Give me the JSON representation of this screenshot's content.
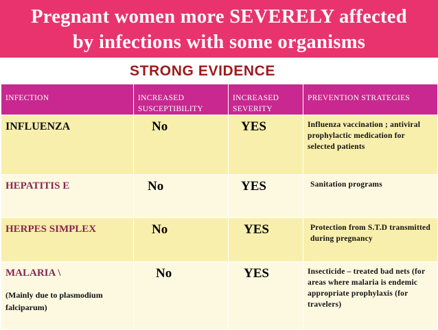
{
  "header": {
    "title_line1": "Pregnant women more SEVERELY affected",
    "title_line2": "by infections with some organisms",
    "background": "#e8336f"
  },
  "subtitle": "STRONG EVIDENCE",
  "table": {
    "columns": [
      "INFECTION",
      "INCREASED SUSCEPTIBILITY",
      "INCREASED SEVERITY",
      "PREVENTION STRATEGIES"
    ],
    "rows": [
      {
        "infection": "INFLUENZA",
        "susceptibility": "No",
        "severity": "YES",
        "prevention": "Influenza vaccination ; antiviral prophylactic medication for selected patients"
      },
      {
        "infection": "HEPATITIS E",
        "susceptibility": "No",
        "severity": "YES",
        "prevention": "Sanitation programs"
      },
      {
        "infection": "HERPES SIMPLEX",
        "susceptibility": "No",
        "severity": "YES",
        "prevention": "Protection from S.T.D transmitted during pregnancy"
      },
      {
        "infection": "MALARIA \\",
        "note": "(Mainly due to plasmodium falciparum)",
        "susceptibility": "No",
        "severity": "YES",
        "prevention": "Insecticide – treated bad nets (for areas where malaria is endemic appropriate prophylaxis (for travelers)"
      }
    ]
  },
  "colors": {
    "header_row": "#c8288f",
    "row_dark": "#f9efad",
    "row_light": "#fdf9e1",
    "subtitle": "#9a1c1c"
  }
}
